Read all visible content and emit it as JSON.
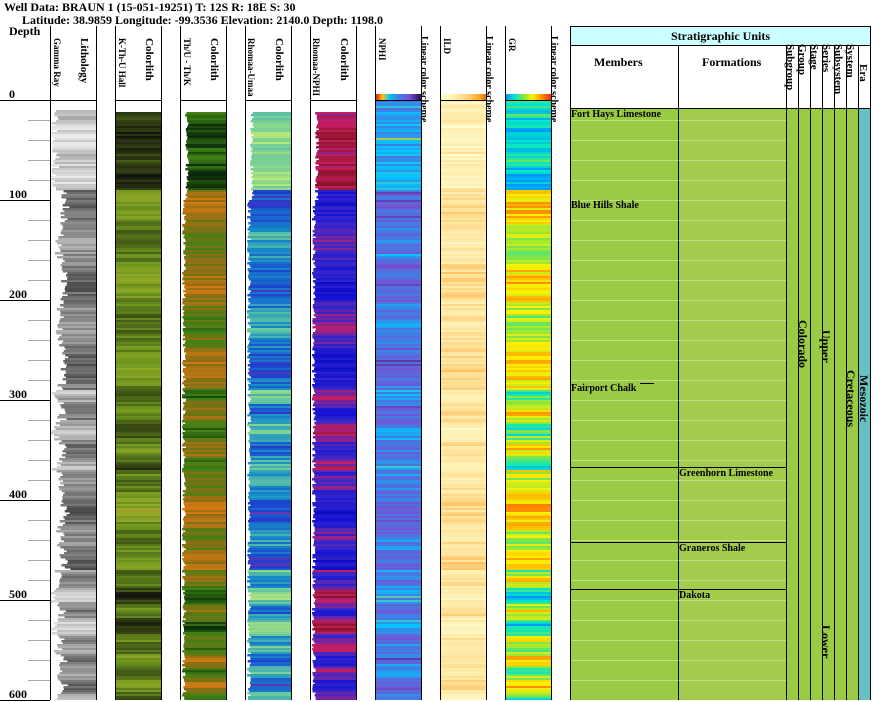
{
  "header": {
    "well_line": "Well Data: BRAUN 1 (15-051-19251) T: 12S R: 18E S: 30",
    "location_line": "Latitude: 38.9859 Longitude: -99.3536 Elevation: 2140.0 Depth: 1198.0"
  },
  "depth_axis": {
    "title": "Depth",
    "ticks": [
      "0",
      "100",
      "200",
      "300",
      "400",
      "500",
      "600"
    ]
  },
  "tracks": [
    {
      "id": "gamma",
      "labels": [
        "Gamma Ray",
        "Lithology"
      ]
    },
    {
      "id": "kthu",
      "labels": [
        "K-Th-U Hall",
        "Colorlith"
      ]
    },
    {
      "id": "thuk",
      "labels": [
        "Th/U - Th/K",
        "Colorlith"
      ]
    },
    {
      "id": "rhouma",
      "labels": [
        "Rhomaa-Umaa",
        "Colorlith"
      ]
    },
    {
      "id": "rhonphi",
      "labels": [
        "Rhomaa-NPHI",
        "Colorlith"
      ]
    },
    {
      "id": "nphi",
      "labels": [
        "NPHI",
        "Linear color scheme"
      ]
    },
    {
      "id": "ild",
      "labels": [
        "ILD",
        "Linear color scheme"
      ]
    },
    {
      "id": "gr",
      "labels": [
        "GR",
        "Linear color scheme"
      ]
    }
  ],
  "strat": {
    "title": "Stratigraphic Units",
    "columns": [
      "Members",
      "Formations",
      "Subgroup",
      "Group",
      "Stage",
      "Series",
      "Subsystem",
      "System",
      "Era"
    ],
    "members": [
      {
        "label": "Fort Hays Limestone",
        "depth": 10
      },
      {
        "label": "Blue Hills Shale",
        "depth": 101
      },
      {
        "label": "Fairport Chalk",
        "depth": 284
      }
    ],
    "formations": [
      {
        "label": "Greenhorn Limestone",
        "depth": 367
      },
      {
        "label": "Graneros Shale",
        "depth": 442
      },
      {
        "label": "Dakota",
        "depth": 489
      }
    ],
    "group": "Colorado",
    "series_upper": "Upper",
    "series_lower": "Lower",
    "system": "Cretaceous",
    "era": "Mesozoic",
    "colors": {
      "members": "#99cc44",
      "formations": "#a3cc4c",
      "era": "#66c2c2",
      "title": "#ccffff"
    }
  },
  "chart_data": {
    "type": "heatmap",
    "depth_range": [
      0,
      600
    ],
    "x_label": "Depth",
    "note_series": [
      "Gamma Ray",
      "K-Th-U Hall",
      "Th/U - Th/K",
      "Rhomaa-Umaa",
      "Rhomaa-NPHI",
      "NPHI",
      "ILD",
      "GR"
    ]
  }
}
